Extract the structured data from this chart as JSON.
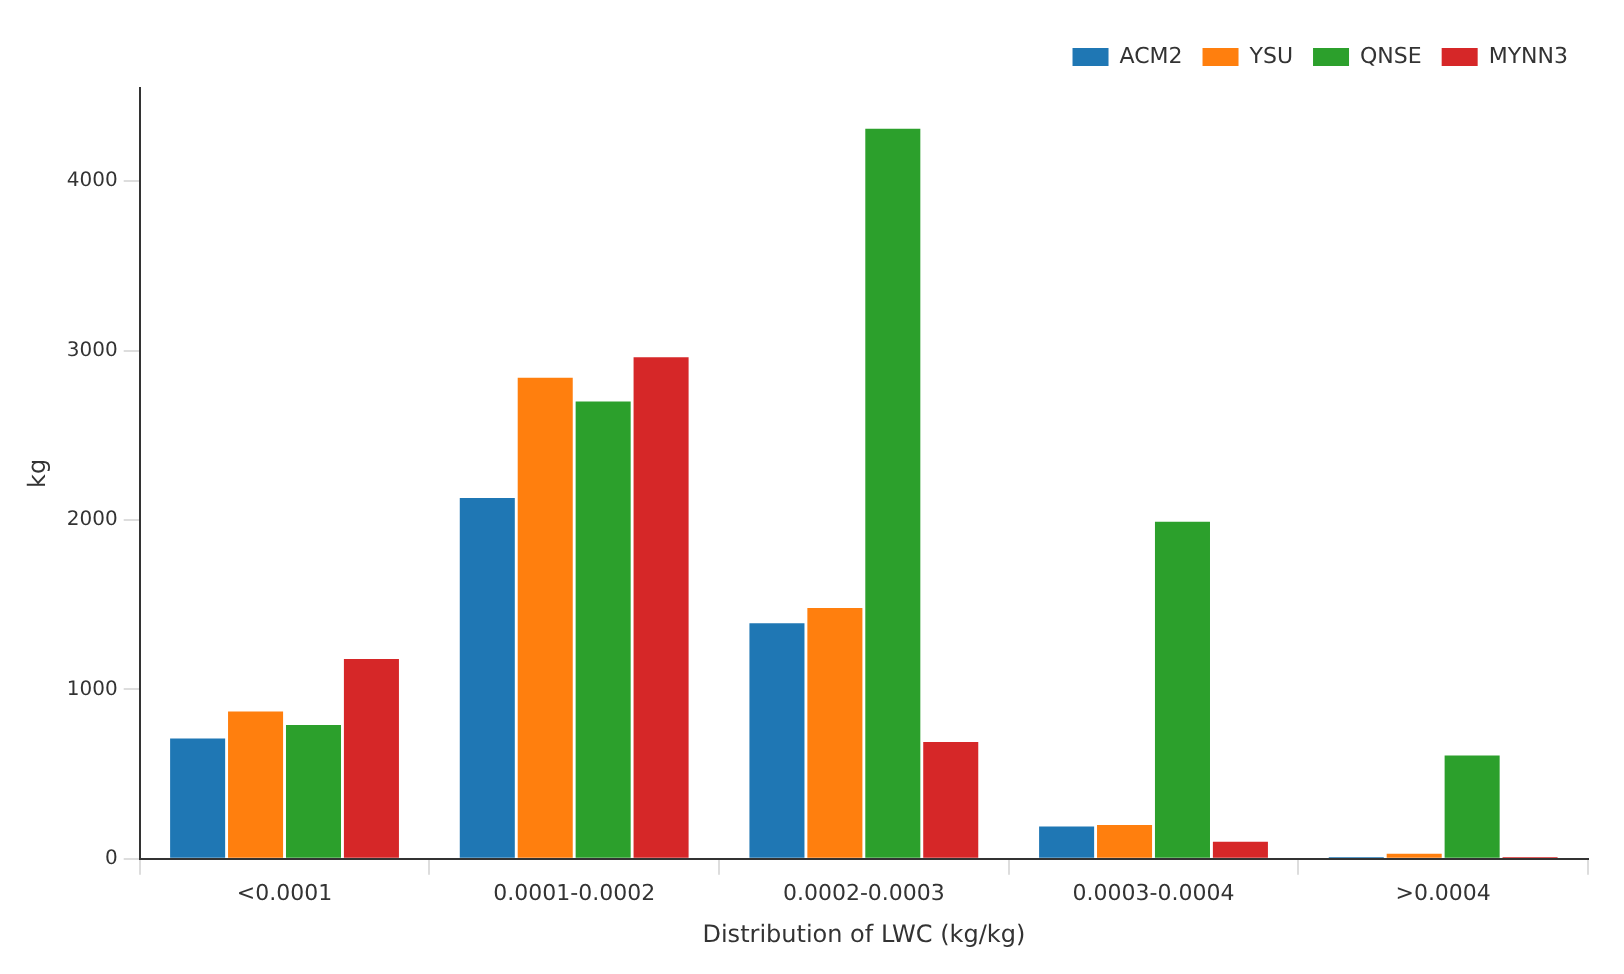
{
  "chart_data": {
    "type": "bar",
    "xlabel": "Distribution of LWC (kg/kg)",
    "ylabel": "kg",
    "categories": [
      "<0.0001",
      "0.0001-0.0002",
      "0.0002-0.0003",
      "0.0003-0.0004",
      ">0.0004"
    ],
    "series": [
      {
        "name": "ACM2",
        "color": "#1f77b4",
        "values": [
          710,
          2130,
          1390,
          190,
          10
        ]
      },
      {
        "name": "YSU",
        "color": "#ff7f0e",
        "values": [
          870,
          2840,
          1480,
          200,
          30
        ]
      },
      {
        "name": "QNSE",
        "color": "#2ca02c",
        "values": [
          790,
          2700,
          4310,
          1990,
          610
        ]
      },
      {
        "name": "MYNN3",
        "color": "#d62728",
        "values": [
          1180,
          2960,
          690,
          100,
          10
        ]
      }
    ],
    "ylim": [
      0,
      4550
    ],
    "yticks": [
      0,
      1000,
      2000,
      3000,
      4000
    ],
    "grid": false,
    "legend": "top right"
  }
}
